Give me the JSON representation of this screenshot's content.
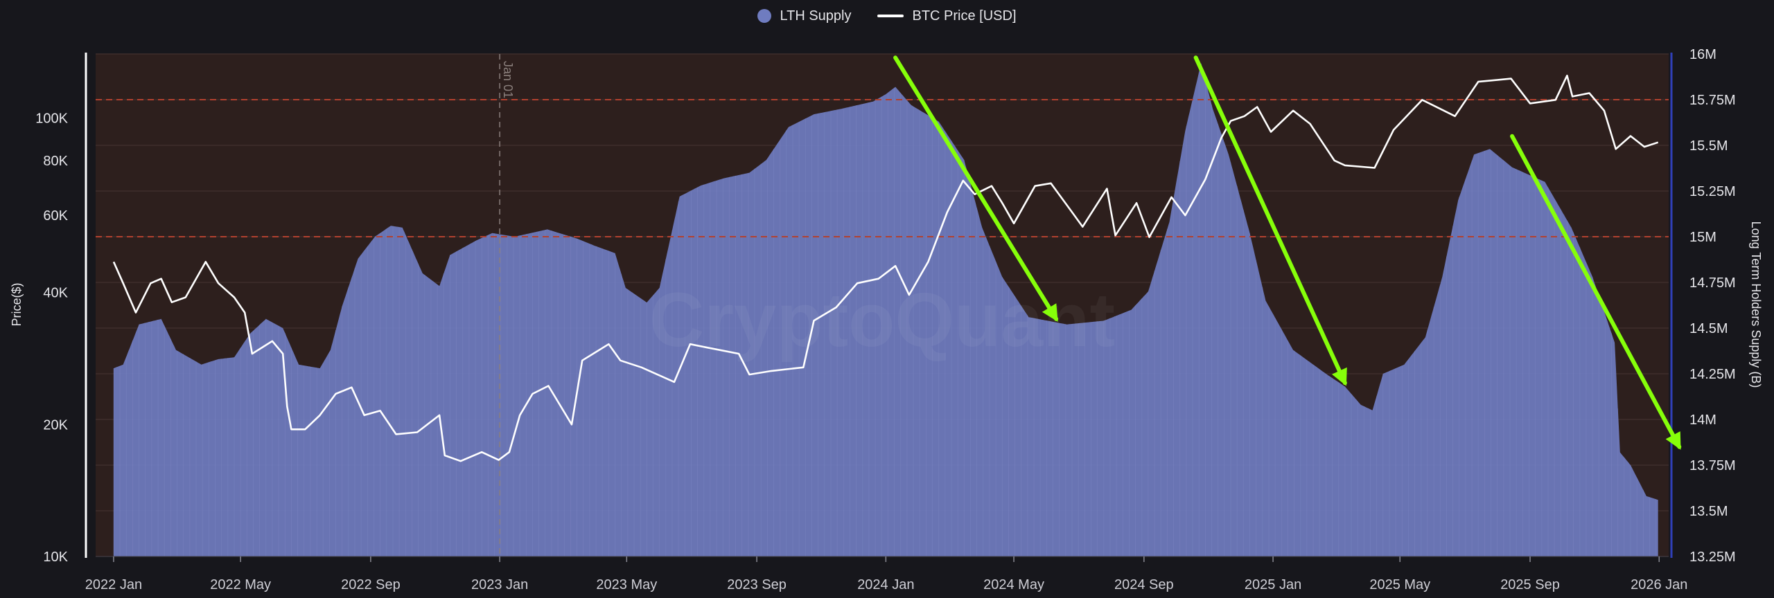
{
  "chart_data": {
    "type": "area",
    "legend": [
      {
        "name": "LTH Supply",
        "color": "#6f7cc0",
        "marker": "dot"
      },
      {
        "name": "BTC Price [USD]",
        "color": "#ffffff",
        "marker": "line"
      }
    ],
    "ylabel_left": "Price($)",
    "ylabel_right": "Long Term Holders Supply (B)",
    "y_left": {
      "scale": "log",
      "range": [
        10000,
        140000
      ],
      "ticks": [
        {
          "value": 10000,
          "label": "10K"
        },
        {
          "value": 20000,
          "label": "20K"
        },
        {
          "value": 40000,
          "label": "40K"
        },
        {
          "value": 60000,
          "label": "60K"
        },
        {
          "value": 80000,
          "label": "80K"
        },
        {
          "value": 100000,
          "label": "100K"
        }
      ]
    },
    "y_right": {
      "scale": "linear",
      "range": [
        13.25,
        16.0
      ],
      "ticks": [
        {
          "value": 13.25,
          "label": "13.25M"
        },
        {
          "value": 13.5,
          "label": "13.5M"
        },
        {
          "value": 13.75,
          "label": "13.75M"
        },
        {
          "value": 14.0,
          "label": "14M"
        },
        {
          "value": 14.25,
          "label": "14.25M"
        },
        {
          "value": 14.5,
          "label": "14.5M"
        },
        {
          "value": 14.75,
          "label": "14.75M"
        },
        {
          "value": 15.0,
          "label": "15M"
        },
        {
          "value": 15.25,
          "label": "15.25M"
        },
        {
          "value": 15.5,
          "label": "15.5M"
        },
        {
          "value": 15.75,
          "label": "15.75M"
        },
        {
          "value": 16.0,
          "label": "16M"
        }
      ]
    },
    "x_axis": {
      "range": [
        "2021-12-15",
        "2026-01-10"
      ],
      "ticks": [
        {
          "date": "2022-01-01",
          "label": "2022 Jan"
        },
        {
          "date": "2022-05-01",
          "label": "2022 May"
        },
        {
          "date": "2022-09-01",
          "label": "2022 Sep"
        },
        {
          "date": "2023-01-01",
          "label": "2023 Jan"
        },
        {
          "date": "2023-05-01",
          "label": "2023 May"
        },
        {
          "date": "2023-09-01",
          "label": "2023 Sep"
        },
        {
          "date": "2024-01-01",
          "label": "2024 Jan"
        },
        {
          "date": "2024-05-01",
          "label": "2024 May"
        },
        {
          "date": "2024-09-01",
          "label": "2024 Sep"
        },
        {
          "date": "2025-01-01",
          "label": "2025 Jan"
        },
        {
          "date": "2025-05-01",
          "label": "2025 May"
        },
        {
          "date": "2025-09-01",
          "label": "2025 Sep"
        },
        {
          "date": "2026-01-01",
          "label": "2026 Jan"
        }
      ]
    },
    "annotations": {
      "vline": {
        "date": "2023-01-01",
        "label": "Jan 01"
      },
      "hlines_right": [
        15.75,
        15.0
      ],
      "arrows": [
        {
          "from": [
            "2024-01-10",
            15.98
          ],
          "to": [
            "2024-06-10",
            14.55
          ]
        },
        {
          "from": [
            "2024-10-20",
            15.98
          ],
          "to": [
            "2025-03-10",
            14.2
          ]
        },
        {
          "from": [
            "2025-08-15",
            15.55
          ],
          "to": [
            "2026-01-20",
            13.85
          ]
        }
      ],
      "arrow_color": "#86ff0a"
    },
    "watermark": "CryptoQuant",
    "series": [
      {
        "name": "LTH Supply",
        "axis": "right",
        "points": [
          [
            "2022-01-01",
            14.28
          ],
          [
            "2022-01-10",
            14.3
          ],
          [
            "2022-01-25",
            14.52
          ],
          [
            "2022-02-15",
            14.55
          ],
          [
            "2022-03-01",
            14.38
          ],
          [
            "2022-03-25",
            14.3
          ],
          [
            "2022-04-10",
            14.33
          ],
          [
            "2022-04-25",
            14.34
          ],
          [
            "2022-05-10",
            14.47
          ],
          [
            "2022-05-25",
            14.55
          ],
          [
            "2022-06-10",
            14.5
          ],
          [
            "2022-06-25",
            14.3
          ],
          [
            "2022-07-15",
            14.28
          ],
          [
            "2022-07-25",
            14.38
          ],
          [
            "2022-08-05",
            14.62
          ],
          [
            "2022-08-20",
            14.88
          ],
          [
            "2022-09-05",
            15.0
          ],
          [
            "2022-09-20",
            15.06
          ],
          [
            "2022-10-01",
            15.05
          ],
          [
            "2022-10-20",
            14.8
          ],
          [
            "2022-11-05",
            14.73
          ],
          [
            "2022-11-15",
            14.9
          ],
          [
            "2022-12-10",
            14.98
          ],
          [
            "2022-12-25",
            15.02
          ],
          [
            "2023-01-15",
            15.0
          ],
          [
            "2023-02-15",
            15.04
          ],
          [
            "2023-03-15",
            14.99
          ],
          [
            "2023-04-01",
            14.95
          ],
          [
            "2023-04-20",
            14.91
          ],
          [
            "2023-04-30",
            14.72
          ],
          [
            "2023-05-20",
            14.64
          ],
          [
            "2023-06-01",
            14.72
          ],
          [
            "2023-06-20",
            15.22
          ],
          [
            "2023-07-10",
            15.28
          ],
          [
            "2023-08-01",
            15.32
          ],
          [
            "2023-08-25",
            15.35
          ],
          [
            "2023-09-10",
            15.42
          ],
          [
            "2023-10-01",
            15.6
          ],
          [
            "2023-10-25",
            15.67
          ],
          [
            "2023-11-20",
            15.7
          ],
          [
            "2023-12-20",
            15.74
          ],
          [
            "2024-01-01",
            15.78
          ],
          [
            "2024-01-10",
            15.82
          ],
          [
            "2024-01-25",
            15.72
          ],
          [
            "2024-02-20",
            15.63
          ],
          [
            "2024-03-15",
            15.42
          ],
          [
            "2024-04-01",
            15.05
          ],
          [
            "2024-04-20",
            14.78
          ],
          [
            "2024-05-15",
            14.56
          ],
          [
            "2024-06-20",
            14.52
          ],
          [
            "2024-07-25",
            14.54
          ],
          [
            "2024-08-20",
            14.6
          ],
          [
            "2024-09-05",
            14.7
          ],
          [
            "2024-09-25",
            15.08
          ],
          [
            "2024-10-10",
            15.58
          ],
          [
            "2024-10-25",
            15.95
          ],
          [
            "2024-11-05",
            15.7
          ],
          [
            "2024-11-20",
            15.45
          ],
          [
            "2024-12-10",
            15.02
          ],
          [
            "2024-12-25",
            14.65
          ],
          [
            "2025-01-20",
            14.38
          ],
          [
            "2025-02-20",
            14.25
          ],
          [
            "2025-03-10",
            14.18
          ],
          [
            "2025-03-25",
            14.08
          ],
          [
            "2025-04-05",
            14.05
          ],
          [
            "2025-04-15",
            14.25
          ],
          [
            "2025-05-05",
            14.3
          ],
          [
            "2025-05-25",
            14.45
          ],
          [
            "2025-06-10",
            14.78
          ],
          [
            "2025-06-25",
            15.2
          ],
          [
            "2025-07-10",
            15.45
          ],
          [
            "2025-07-25",
            15.48
          ],
          [
            "2025-08-15",
            15.38
          ],
          [
            "2025-09-15",
            15.3
          ],
          [
            "2025-10-10",
            15.05
          ],
          [
            "2025-10-30",
            14.78
          ],
          [
            "2025-11-20",
            14.42
          ],
          [
            "2025-11-25",
            13.82
          ],
          [
            "2025-12-05",
            13.75
          ],
          [
            "2025-12-20",
            13.58
          ],
          [
            "2025-12-31",
            13.56
          ]
        ]
      },
      {
        "name": "BTC Price [USD]",
        "axis": "left",
        "points": [
          [
            "2022-01-01",
            47000
          ],
          [
            "2022-01-10",
            42000
          ],
          [
            "2022-01-22",
            36000
          ],
          [
            "2022-02-05",
            42000
          ],
          [
            "2022-02-15",
            43000
          ],
          [
            "2022-02-25",
            38000
          ],
          [
            "2022-03-10",
            39000
          ],
          [
            "2022-03-29",
            47000
          ],
          [
            "2022-04-10",
            42000
          ],
          [
            "2022-04-25",
            39000
          ],
          [
            "2022-05-05",
            36000
          ],
          [
            "2022-05-12",
            29000
          ],
          [
            "2022-05-31",
            31000
          ],
          [
            "2022-06-10",
            29000
          ],
          [
            "2022-06-14",
            22000
          ],
          [
            "2022-06-18",
            19500
          ],
          [
            "2022-07-01",
            19500
          ],
          [
            "2022-07-15",
            21000
          ],
          [
            "2022-07-30",
            23500
          ],
          [
            "2022-08-14",
            24300
          ],
          [
            "2022-08-26",
            21000
          ],
          [
            "2022-09-10",
            21500
          ],
          [
            "2022-09-25",
            19000
          ],
          [
            "2022-10-15",
            19200
          ],
          [
            "2022-11-05",
            21000
          ],
          [
            "2022-11-10",
            17000
          ],
          [
            "2022-11-25",
            16500
          ],
          [
            "2022-12-15",
            17300
          ],
          [
            "2022-12-31",
            16600
          ],
          [
            "2023-01-10",
            17300
          ],
          [
            "2023-01-20",
            21000
          ],
          [
            "2023-02-01",
            23500
          ],
          [
            "2023-02-16",
            24500
          ],
          [
            "2023-03-10",
            20000
          ],
          [
            "2023-03-20",
            28000
          ],
          [
            "2023-04-14",
            30500
          ],
          [
            "2023-04-25",
            28000
          ],
          [
            "2023-05-15",
            27000
          ],
          [
            "2023-06-15",
            25000
          ],
          [
            "2023-06-30",
            30500
          ],
          [
            "2023-07-15",
            30000
          ],
          [
            "2023-08-15",
            29000
          ],
          [
            "2023-08-25",
            26000
          ],
          [
            "2023-09-15",
            26500
          ],
          [
            "2023-10-15",
            27000
          ],
          [
            "2023-10-25",
            34500
          ],
          [
            "2023-11-15",
            37000
          ],
          [
            "2023-12-05",
            42000
          ],
          [
            "2023-12-25",
            43000
          ],
          [
            "2024-01-10",
            46000
          ],
          [
            "2024-01-23",
            39500
          ],
          [
            "2024-02-10",
            47000
          ],
          [
            "2024-02-28",
            61000
          ],
          [
            "2024-03-14",
            72000
          ],
          [
            "2024-03-25",
            67000
          ],
          [
            "2024-04-10",
            70000
          ],
          [
            "2024-04-20",
            64000
          ],
          [
            "2024-05-01",
            57500
          ],
          [
            "2024-05-21",
            70000
          ],
          [
            "2024-06-05",
            71000
          ],
          [
            "2024-06-25",
            61000
          ],
          [
            "2024-07-05",
            56500
          ],
          [
            "2024-07-28",
            69000
          ],
          [
            "2024-08-05",
            54000
          ],
          [
            "2024-08-25",
            64000
          ],
          [
            "2024-09-06",
            53500
          ],
          [
            "2024-09-27",
            66000
          ],
          [
            "2024-10-10",
            60000
          ],
          [
            "2024-10-29",
            72500
          ],
          [
            "2024-11-13",
            90000
          ],
          [
            "2024-11-22",
            98500
          ],
          [
            "2024-12-05",
            101000
          ],
          [
            "2024-12-17",
            106000
          ],
          [
            "2024-12-30",
            93000
          ],
          [
            "2025-01-20",
            104000
          ],
          [
            "2025-02-05",
            97000
          ],
          [
            "2025-02-28",
            80000
          ],
          [
            "2025-03-10",
            78000
          ],
          [
            "2025-04-07",
            77000
          ],
          [
            "2025-04-25",
            94000
          ],
          [
            "2025-05-22",
            110000
          ],
          [
            "2025-06-22",
            101000
          ],
          [
            "2025-07-14",
            121000
          ],
          [
            "2025-08-14",
            123000
          ],
          [
            "2025-09-01",
            108000
          ],
          [
            "2025-09-25",
            110000
          ],
          [
            "2025-10-06",
            125000
          ],
          [
            "2025-10-11",
            112000
          ],
          [
            "2025-10-27",
            114000
          ],
          [
            "2025-11-10",
            104000
          ],
          [
            "2025-11-21",
            85000
          ],
          [
            "2025-12-05",
            91000
          ],
          [
            "2025-12-18",
            86000
          ],
          [
            "2025-12-31",
            88000
          ]
        ]
      }
    ]
  }
}
